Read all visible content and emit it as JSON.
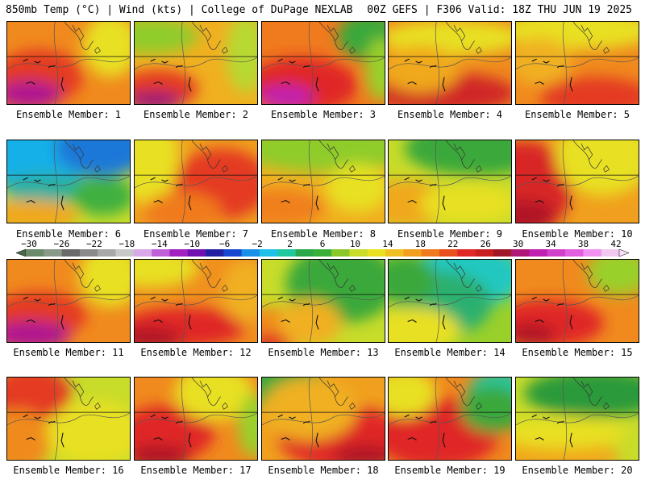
{
  "header": {
    "left": "850mb Temp (°C) | Wind (kts) | College of DuPage NEXLAB",
    "right": "00Z GEFS | F306 Valid: 18Z THU JUN 19 2025"
  },
  "caption_prefix": "Ensemble Member: ",
  "members": [
    {
      "label": "Ensemble Member: 1",
      "bg": "#f08a1e",
      "blobs": [
        [
          "#e43a20",
          40,
          70,
          55,
          35
        ],
        [
          "#b01890",
          28,
          92,
          40,
          18
        ],
        [
          "#e8e020",
          130,
          30,
          35,
          40
        ]
      ]
    },
    {
      "label": "Ensemble Member: 2",
      "bg": "#f0b020",
      "blobs": [
        [
          "#8fcc2a",
          20,
          18,
          60,
          22
        ],
        [
          "#e43a20",
          30,
          85,
          50,
          25
        ],
        [
          "#9a1878",
          25,
          100,
          35,
          12
        ],
        [
          "#b8d830",
          140,
          40,
          25,
          50
        ]
      ]
    },
    {
      "label": "Ensemble Member: 3",
      "bg": "#f07a1e",
      "blobs": [
        [
          "#e02828",
          50,
          80,
          70,
          35
        ],
        [
          "#c020b0",
          30,
          95,
          35,
          15
        ],
        [
          "#3aa83a",
          135,
          18,
          40,
          30
        ],
        [
          "#9ad02a",
          150,
          60,
          20,
          40
        ]
      ]
    },
    {
      "label": "Ensemble Member: 4",
      "bg": "#f08a1e",
      "blobs": [
        [
          "#d02828",
          70,
          90,
          90,
          25
        ],
        [
          "#e8e020",
          80,
          20,
          90,
          22
        ],
        [
          "#f0a81e",
          40,
          60,
          50,
          30
        ]
      ]
    },
    {
      "label": "Ensemble Member: 5",
      "bg": "#f08a1e",
      "blobs": [
        [
          "#e8e020",
          80,
          10,
          100,
          25
        ],
        [
          "#e43a20",
          100,
          95,
          70,
          25
        ],
        [
          "#f0b020",
          30,
          50,
          40,
          30
        ]
      ]
    },
    {
      "label": "Ensemble Member: 6",
      "bg": "#c8dc2a",
      "blobs": [
        [
          "#18b0e8",
          20,
          5,
          160,
          45
        ],
        [
          "#1a78d8",
          120,
          10,
          60,
          35
        ],
        [
          "#2ab0a0",
          50,
          60,
          60,
          18
        ],
        [
          "#40b040",
          120,
          70,
          40,
          25
        ],
        [
          "#f0a81e",
          30,
          95,
          60,
          20
        ]
      ]
    },
    {
      "label": "Ensemble Member: 7",
      "bg": "#f0a01e",
      "blobs": [
        [
          "#e43a20",
          110,
          55,
          60,
          45
        ],
        [
          "#e8e020",
          15,
          20,
          40,
          60
        ],
        [
          "#f07a1e",
          60,
          90,
          50,
          25
        ]
      ]
    },
    {
      "label": "Ensemble Member: 8",
      "bg": "#f0b020",
      "blobs": [
        [
          "#8fcc2a",
          80,
          10,
          110,
          30
        ],
        [
          "#f0801e",
          20,
          85,
          60,
          25
        ],
        [
          "#e8e020",
          120,
          60,
          40,
          30
        ]
      ]
    },
    {
      "label": "Ensemble Member: 9",
      "bg": "#c8dc2a",
      "blobs": [
        [
          "#3aa83a",
          110,
          10,
          90,
          35
        ],
        [
          "#f0a81e",
          20,
          80,
          60,
          30
        ],
        [
          "#e8e020",
          100,
          80,
          60,
          25
        ]
      ]
    },
    {
      "label": "Ensemble Member: 10",
      "bg": "#f0a01e",
      "blobs": [
        [
          "#d82828",
          10,
          60,
          60,
          60
        ],
        [
          "#b01828",
          10,
          95,
          40,
          20
        ],
        [
          "#e8e020",
          110,
          20,
          60,
          50
        ]
      ]
    },
    {
      "label": "Ensemble Member: 11",
      "bg": "#f08a1e",
      "blobs": [
        [
          "#e43a20",
          40,
          70,
          60,
          30
        ],
        [
          "#b01890",
          30,
          95,
          50,
          18
        ],
        [
          "#e8e020",
          130,
          20,
          40,
          40
        ]
      ]
    },
    {
      "label": "Ensemble Member: 12",
      "bg": "#f0901e",
      "blobs": [
        [
          "#e02828",
          60,
          85,
          80,
          25
        ],
        [
          "#b01828",
          20,
          100,
          40,
          15
        ],
        [
          "#e8e020",
          20,
          10,
          60,
          25
        ],
        [
          "#f0b020",
          140,
          40,
          30,
          40
        ]
      ]
    },
    {
      "label": "Ensemble Member: 13",
      "bg": "#c8dc2a",
      "blobs": [
        [
          "#3aa83a",
          100,
          30,
          70,
          50
        ],
        [
          "#f08a1e",
          10,
          90,
          50,
          30
        ],
        [
          "#e02828",
          10,
          105,
          25,
          12
        ],
        [
          "#f0b020",
          60,
          80,
          40,
          30
        ]
      ]
    },
    {
      "label": "Ensemble Member: 14",
      "bg": "#9ad02a",
      "blobs": [
        [
          "#20c8c0",
          100,
          20,
          70,
          40
        ],
        [
          "#2ab070",
          70,
          55,
          60,
          40
        ],
        [
          "#e8e020",
          30,
          90,
          60,
          30
        ],
        [
          "#3aa83a",
          20,
          25,
          40,
          30
        ]
      ]
    },
    {
      "label": "Ensemble Member: 15",
      "bg": "#f08a1e",
      "blobs": [
        [
          "#e02828",
          40,
          80,
          70,
          30
        ],
        [
          "#b01828",
          20,
          95,
          30,
          15
        ],
        [
          "#9ad02a",
          130,
          15,
          40,
          30
        ]
      ]
    },
    {
      "label": "Ensemble Member: 16",
      "bg": "#c8dc2a",
      "blobs": [
        [
          "#e43a20",
          30,
          20,
          50,
          35
        ],
        [
          "#f08a1e",
          15,
          80,
          40,
          40
        ],
        [
          "#e8e020",
          110,
          70,
          60,
          40
        ]
      ]
    },
    {
      "label": "Ensemble Member: 17",
      "bg": "#f08a1e",
      "blobs": [
        [
          "#e02828",
          40,
          70,
          60,
          35
        ],
        [
          "#b01828",
          30,
          100,
          40,
          15
        ],
        [
          "#e8e020",
          100,
          20,
          50,
          35
        ],
        [
          "#9ad02a",
          150,
          60,
          20,
          40
        ]
      ]
    },
    {
      "label": "Ensemble Member: 18",
      "bg": "#f0a01e",
      "blobs": [
        [
          "#e02828",
          100,
          75,
          80,
          40
        ],
        [
          "#3aa83a",
          20,
          10,
          60,
          30
        ],
        [
          "#f0b020",
          60,
          40,
          60,
          40
        ],
        [
          "#b01828",
          130,
          100,
          40,
          15
        ]
      ]
    },
    {
      "label": "Ensemble Member: 19",
      "bg": "#f08a1e",
      "blobs": [
        [
          "#e02828",
          60,
          70,
          80,
          45
        ],
        [
          "#20c8a0",
          140,
          20,
          40,
          30
        ],
        [
          "#3aa83a",
          130,
          40,
          40,
          30
        ],
        [
          "#e8e020",
          20,
          20,
          40,
          30
        ]
      ]
    },
    {
      "label": "Ensemble Member: 20",
      "bg": "#c8dc2a",
      "blobs": [
        [
          "#2a9a3a",
          100,
          20,
          90,
          30
        ],
        [
          "#f0a81e",
          40,
          100,
          90,
          25
        ],
        [
          "#e8e020",
          60,
          70,
          80,
          20
        ]
      ]
    }
  ],
  "colorbar": {
    "labels": [
      "−30",
      "−26",
      "−22",
      "−18",
      "−14",
      "−10",
      "−6",
      "−2",
      "2",
      "6",
      "10",
      "14",
      "18",
      "22",
      "26",
      "30",
      "34",
      "38",
      "42"
    ],
    "colors": [
      "#6a8a6a",
      "#8a9a8a",
      "#6a6a6a",
      "#8a8a8a",
      "#a8a8a8",
      "#c8c8c8",
      "#d8a8e8",
      "#c060d8",
      "#a020c0",
      "#7010b0",
      "#2020a0",
      "#1848d0",
      "#1890e8",
      "#20c0e8",
      "#20c8a0",
      "#2aa84a",
      "#3ab03a",
      "#8ac82a",
      "#c8dc2a",
      "#e8e020",
      "#f0c020",
      "#f0a01e",
      "#f07a1e",
      "#e85020",
      "#e02828",
      "#c82020",
      "#a01828",
      "#b01878",
      "#c020b0",
      "#d040c8",
      "#e060e0",
      "#f090f0",
      "#f0c8f0"
    ]
  }
}
